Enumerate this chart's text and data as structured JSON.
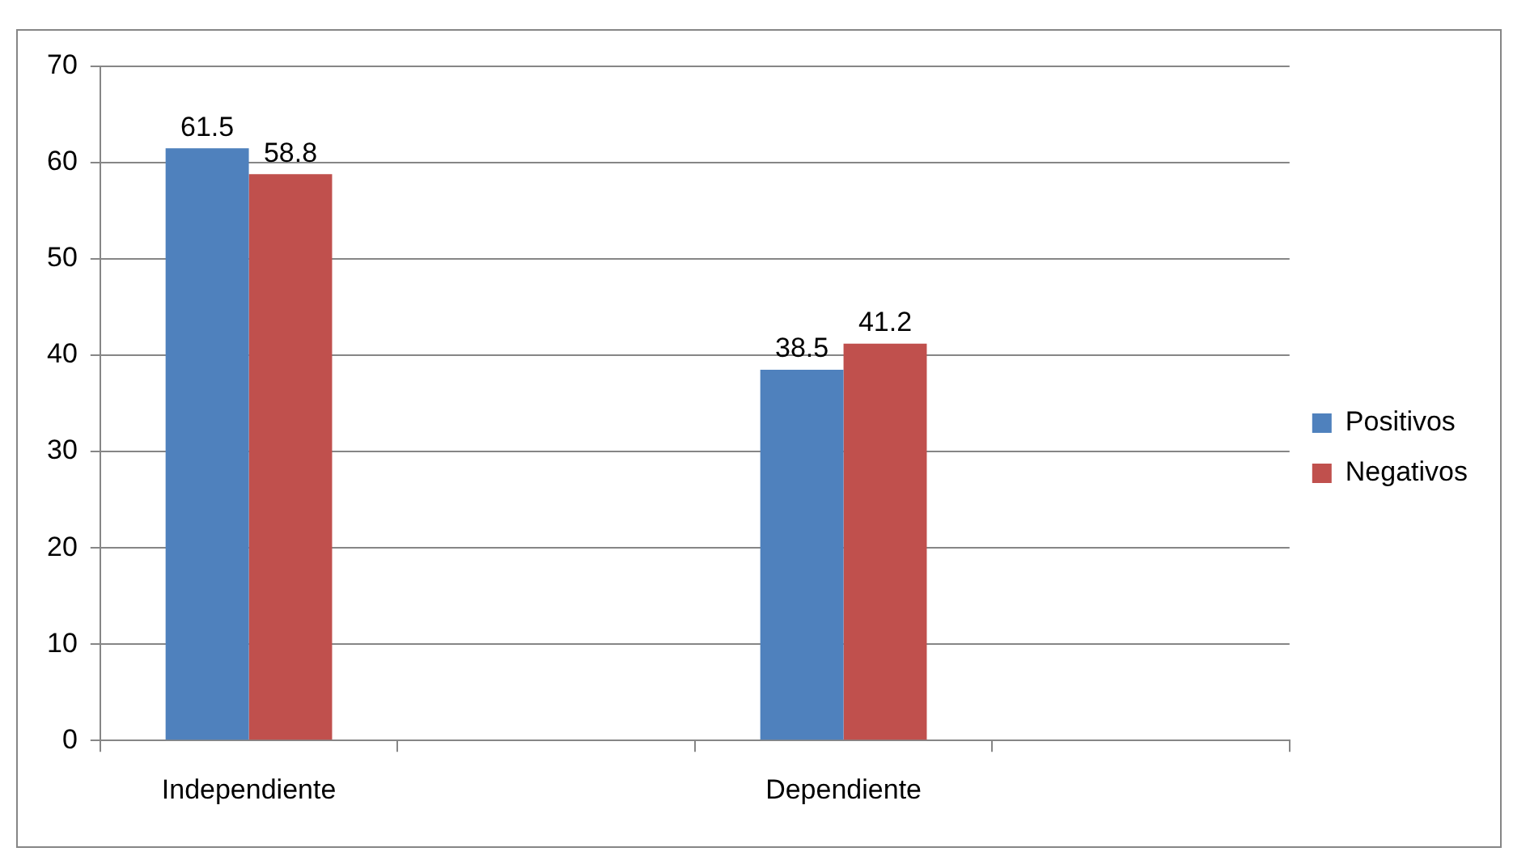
{
  "chart_data": {
    "type": "bar",
    "categories": [
      "Independiente",
      null,
      "Dependiente",
      null
    ],
    "series": [
      {
        "name": "Positivos",
        "color": "#4f81bd",
        "values": [
          61.5,
          null,
          38.5,
          null
        ]
      },
      {
        "name": "Negativos",
        "color": "#c0504d",
        "values": [
          58.8,
          null,
          41.2,
          null
        ]
      }
    ],
    "ylim": [
      0,
      70
    ],
    "yticks": [
      0,
      10,
      20,
      30,
      40,
      50,
      60,
      70
    ],
    "grid": "y",
    "legend": "right",
    "data_labels": true
  }
}
